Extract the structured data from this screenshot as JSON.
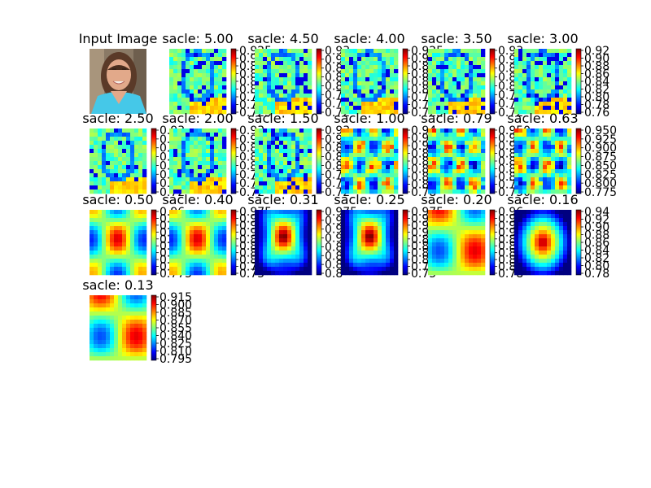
{
  "figure": {
    "input_title": "Input Image",
    "input_image": "portrait-photo"
  },
  "chart_data": {
    "type": "heatmap",
    "title_prefix": "sacle: ",
    "colormap": "jet",
    "panels": [
      {
        "scale": "5.00",
        "ticks": [
          "0.925",
          "0.9",
          "0.875",
          "0.85",
          "0.825",
          "0.8",
          "0.775",
          "0.75",
          "0.725"
        ],
        "texture": "edges"
      },
      {
        "scale": "4.50",
        "ticks": [
          "0.93",
          "0.9",
          "0.87",
          "0.84",
          "0.81",
          "0.78",
          "0.75",
          "0.72"
        ],
        "texture": "edges"
      },
      {
        "scale": "4.00",
        "ticks": [
          "0.925",
          "0.9",
          "0.875",
          "0.85",
          "0.825",
          "0.8",
          "0.775",
          "0.75",
          "0.725"
        ],
        "texture": "edges"
      },
      {
        "scale": "3.50",
        "ticks": [
          "0.93",
          "0.9",
          "0.87",
          "0.84",
          "0.81",
          "0.78",
          "0.75",
          "0.72"
        ],
        "texture": "edges"
      },
      {
        "scale": "3.00",
        "ticks": [
          "0.92",
          "0.90",
          "0.88",
          "0.86",
          "0.84",
          "0.82",
          "0.80",
          "0.78",
          "0.76"
        ],
        "texture": "edges"
      },
      {
        "scale": "2.50",
        "ticks": [
          "0.93",
          "0.9",
          "0.87",
          "0.84",
          "0.81",
          "0.78",
          "0.75",
          "0.72"
        ],
        "texture": "edges"
      },
      {
        "scale": "2.00",
        "ticks": [
          "0.93",
          "0.9",
          "0.87",
          "0.84",
          "0.81",
          "0.78",
          "0.75",
          "0.72"
        ],
        "texture": "edges"
      },
      {
        "scale": "1.50",
        "ticks": [
          "0.93",
          "0.9",
          "0.87",
          "0.84",
          "0.81",
          "0.78",
          "0.75",
          "0.72"
        ],
        "texture": "edges"
      },
      {
        "scale": "1.00",
        "ticks": [
          "0.94",
          "0.92",
          "0.90",
          "0.88",
          "0.86",
          "0.84",
          "0.82",
          "0.80",
          "0.78"
        ],
        "texture": "blobs"
      },
      {
        "scale": "0.79",
        "ticks": [
          "0.950",
          "0.925",
          "0.900",
          "0.875",
          "0.850",
          "0.825",
          "0.800",
          "0.775",
          "0.750"
        ],
        "texture": "blobs"
      },
      {
        "scale": "0.63",
        "ticks": [
          "0.950",
          "0.925",
          "0.900",
          "0.875",
          "0.850",
          "0.825",
          "0.800",
          "0.775"
        ],
        "texture": "blobs"
      },
      {
        "scale": "0.50",
        "ticks": [
          "0.96",
          "0.94",
          "0.92",
          "0.90",
          "0.88",
          "0.86",
          "0.84",
          "0.82",
          "0.80",
          "0.775"
        ],
        "texture": "coarse"
      },
      {
        "scale": "0.40",
        "ticks": [
          "0.975",
          "0.95",
          "0.925",
          "0.9",
          "0.875",
          "0.85",
          "0.825",
          "0.8",
          "0.775",
          "0.75"
        ],
        "texture": "coarse"
      },
      {
        "scale": "0.31",
        "ticks": [
          "0.975",
          "0.95",
          "0.925",
          "0.9",
          "0.875",
          "0.85",
          "0.825",
          "0.8"
        ],
        "texture": "blob_center"
      },
      {
        "scale": "0.25",
        "ticks": [
          "0.975",
          "0.95",
          "0.925",
          "0.9",
          "0.875",
          "0.85",
          "0.825",
          "0.8",
          "0.775",
          "0.75"
        ],
        "texture": "blob_center"
      },
      {
        "scale": "0.20",
        "ticks": [
          "0.96",
          "0.94",
          "0.92",
          "0.90",
          "0.88",
          "0.86",
          "0.84",
          "0.82",
          "0.80",
          "0.78"
        ],
        "texture": "smooth"
      },
      {
        "scale": "0.16",
        "ticks": [
          "0.94",
          "0.92",
          "0.90",
          "0.88",
          "0.86",
          "0.84",
          "0.82",
          "0.80",
          "0.78"
        ],
        "texture": "smooth_peak"
      },
      {
        "scale": "0.13",
        "ticks": [
          "0.915",
          "0.900",
          "0.885",
          "0.870",
          "0.855",
          "0.840",
          "0.825",
          "0.810",
          "0.795"
        ],
        "texture": "smooth"
      }
    ]
  }
}
